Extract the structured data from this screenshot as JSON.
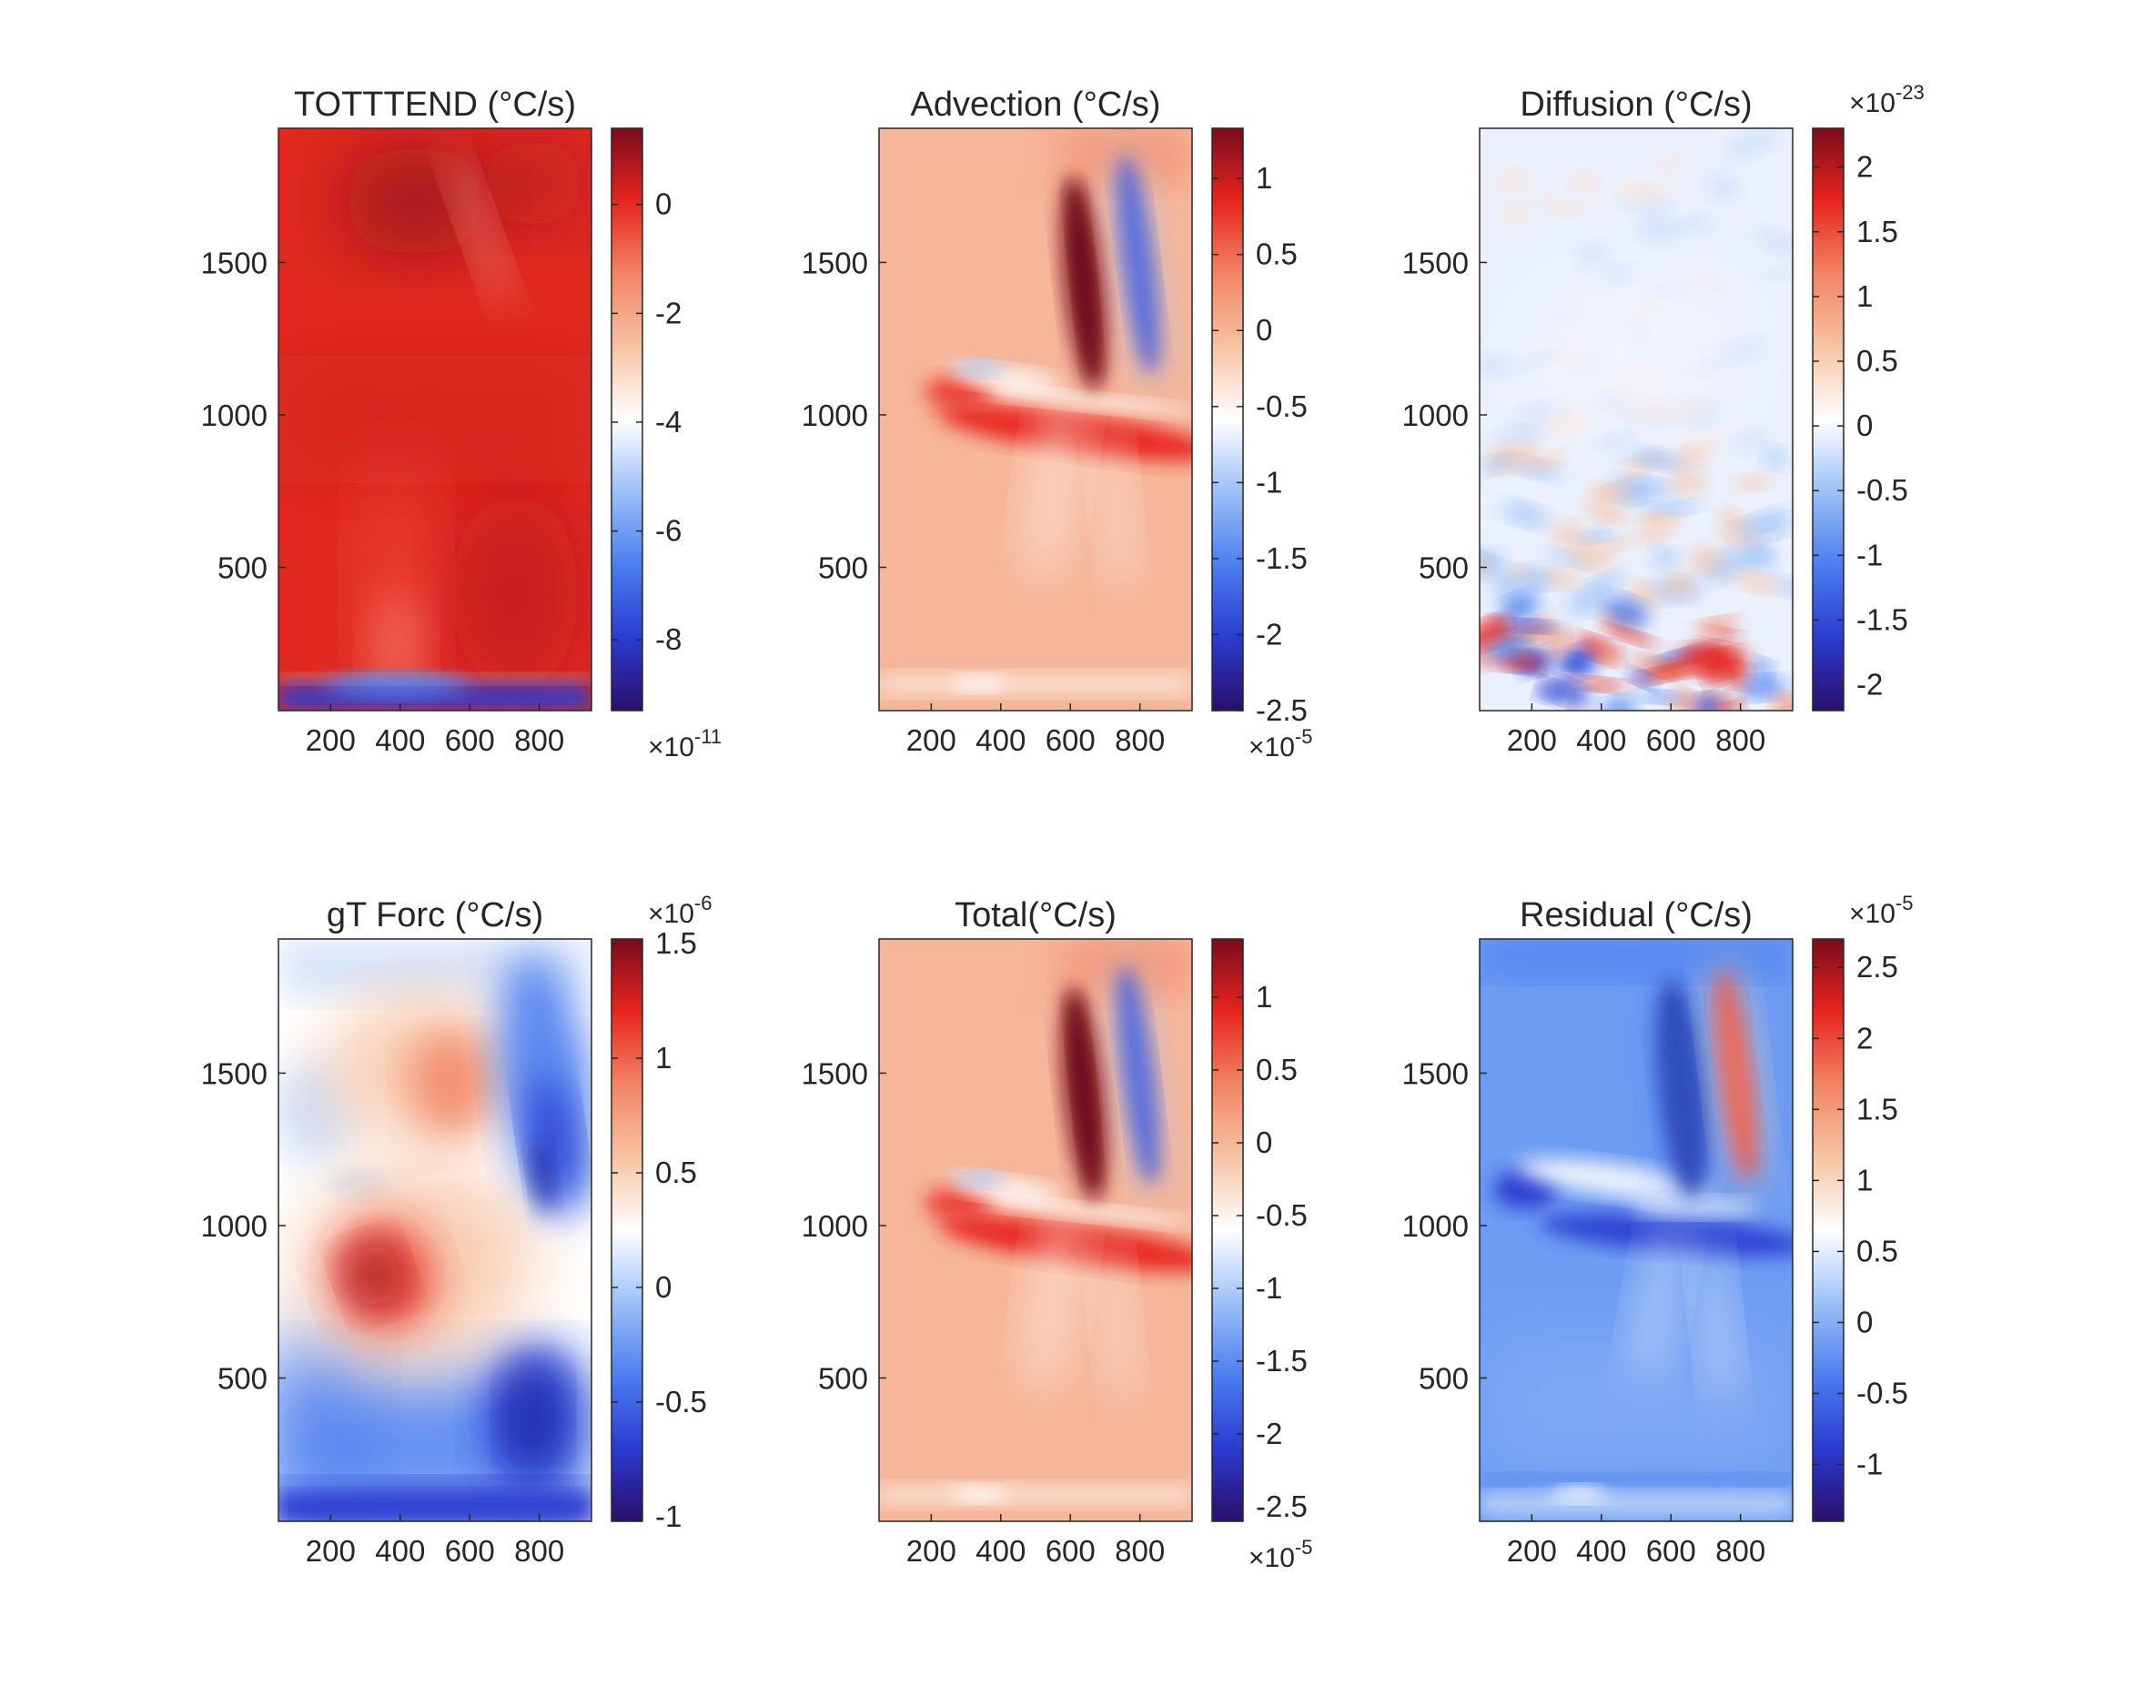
{
  "chart_data": [
    {
      "type": "heatmap",
      "title": "TOTTTEND (°C/s)",
      "xticks": [
        200,
        400,
        600,
        800
      ],
      "yticks": [
        500,
        1000,
        1500
      ],
      "xlim": [
        50,
        950
      ],
      "ylim": [
        30,
        1940
      ],
      "colorbar": {
        "ticks": [
          "0",
          "-2",
          "-4",
          "-6",
          "-8"
        ],
        "values": [
          0,
          -2,
          -4,
          -6,
          -8
        ],
        "range": [
          -9.3,
          1.4
        ],
        "exponent": "-11",
        "exponent_position": "bottom"
      },
      "pattern": "tottend"
    },
    {
      "type": "heatmap",
      "title": "Advection (°C/s)",
      "xticks": [
        200,
        400,
        600,
        800
      ],
      "yticks": [
        500,
        1000,
        1500
      ],
      "xlim": [
        50,
        950
      ],
      "ylim": [
        30,
        1940
      ],
      "colorbar": {
        "ticks": [
          "1",
          "0.5",
          "0",
          "-0.5",
          "-1",
          "-1.5",
          "-2",
          "-2.5"
        ],
        "values": [
          1,
          0.5,
          0,
          -0.5,
          -1,
          -1.5,
          -2,
          -2.5
        ],
        "range": [
          -2.5,
          1.33
        ],
        "exponent": "-5",
        "exponent_position": "bottom"
      },
      "pattern": "advection"
    },
    {
      "type": "heatmap",
      "title": "Diffusion (°C/s)",
      "xticks": [
        200,
        400,
        600,
        800
      ],
      "yticks": [
        500,
        1000,
        1500
      ],
      "xlim": [
        50,
        950
      ],
      "ylim": [
        30,
        1940
      ],
      "colorbar": {
        "ticks": [
          "2",
          "1.5",
          "1",
          "0.5",
          "0",
          "-0.5",
          "-1",
          "-1.5",
          "-2"
        ],
        "values": [
          2,
          1.5,
          1,
          0.5,
          0,
          -0.5,
          -1,
          -1.5,
          -2
        ],
        "range": [
          -2.2,
          2.3
        ],
        "exponent": "-23",
        "exponent_position": "top"
      },
      "pattern": "diffusion"
    },
    {
      "type": "heatmap",
      "title": "gT Forc (°C/s)",
      "xticks": [
        200,
        400,
        600,
        800
      ],
      "yticks": [
        500,
        1000,
        1500
      ],
      "xlim": [
        50,
        950
      ],
      "ylim": [
        30,
        1940
      ],
      "colorbar": {
        "ticks": [
          "1.5",
          "1",
          "0.5",
          "0",
          "-0.5",
          "-1"
        ],
        "values": [
          1.5,
          1,
          0.5,
          0,
          -0.5,
          -1
        ],
        "range": [
          -1.02,
          1.52
        ],
        "exponent": "-6",
        "exponent_position": "top"
      },
      "pattern": "gtforc"
    },
    {
      "type": "heatmap",
      "title": "Total(°C/s)",
      "xticks": [
        200,
        400,
        600,
        800
      ],
      "yticks": [
        500,
        1000,
        1500
      ],
      "xlim": [
        50,
        950
      ],
      "ylim": [
        30,
        1940
      ],
      "colorbar": {
        "ticks": [
          "1",
          "0.5",
          "0",
          "-0.5",
          "-1",
          "-1.5",
          "-2",
          "-2.5"
        ],
        "values": [
          1,
          0.5,
          0,
          -0.5,
          -1,
          -1.5,
          -2,
          -2.5
        ],
        "range": [
          -2.6,
          1.4
        ],
        "exponent": "-5",
        "exponent_position": "bottom"
      },
      "pattern": "advection"
    },
    {
      "type": "heatmap",
      "title": "Residual (°C/s)",
      "xticks": [
        200,
        400,
        600,
        800
      ],
      "yticks": [
        500,
        1000,
        1500
      ],
      "xlim": [
        50,
        950
      ],
      "ylim": [
        30,
        1940
      ],
      "colorbar": {
        "ticks": [
          "2.5",
          "2",
          "1.5",
          "1",
          "0.5",
          "0",
          "-0.5",
          "-1"
        ],
        "values": [
          2.5,
          2,
          1.5,
          1,
          0.5,
          0,
          -0.5,
          -1
        ],
        "range": [
          -1.4,
          2.7
        ],
        "exponent": "-5",
        "exponent_position": "top"
      },
      "pattern": "residual"
    }
  ],
  "colormap": [
    "#2b0f6b",
    "#2a3bd1",
    "#4b7ef0",
    "#9cc0f7",
    "#ffffff",
    "#f7c3a3",
    "#f28464",
    "#e8241e",
    "#7a0c1c"
  ]
}
